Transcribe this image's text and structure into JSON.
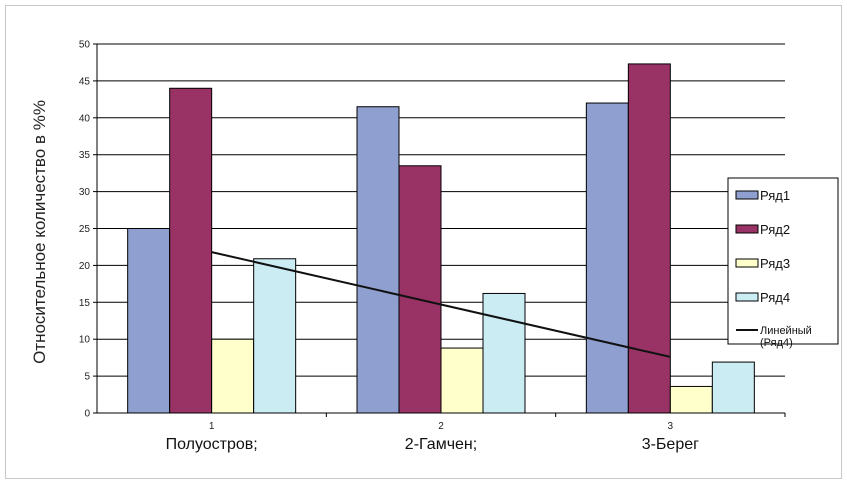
{
  "chart_data": {
    "type": "bar",
    "ylabel": "Относительное количество в %%",
    "ylim": [
      0,
      50
    ],
    "yticks": [
      0,
      5,
      10,
      15,
      20,
      25,
      30,
      35,
      40,
      45,
      50
    ],
    "x": [
      "1",
      "2",
      "3"
    ],
    "categories": [
      "Полуостров;",
      "2-Гамчен;",
      "3-Берег"
    ],
    "series": [
      {
        "name": "Ряд1",
        "values": [
          25,
          41.5,
          42
        ],
        "color": "#8f9fcf"
      },
      {
        "name": "Ряд2",
        "values": [
          44,
          33.5,
          47.3
        ],
        "color": "#993366"
      },
      {
        "name": "Ряд3",
        "values": [
          10,
          8.8,
          3.6
        ],
        "color": "#ffffcc"
      },
      {
        "name": "Ряд4",
        "values": [
          20.9,
          16.2,
          6.9
        ],
        "color": "#ccecf4"
      }
    ],
    "trendline": {
      "name": "Линейный",
      "name_line2": "(Ряд4)",
      "start": 21.8,
      "end": 7.6,
      "color": "#111111"
    },
    "grid": true,
    "legend_position": "right"
  }
}
